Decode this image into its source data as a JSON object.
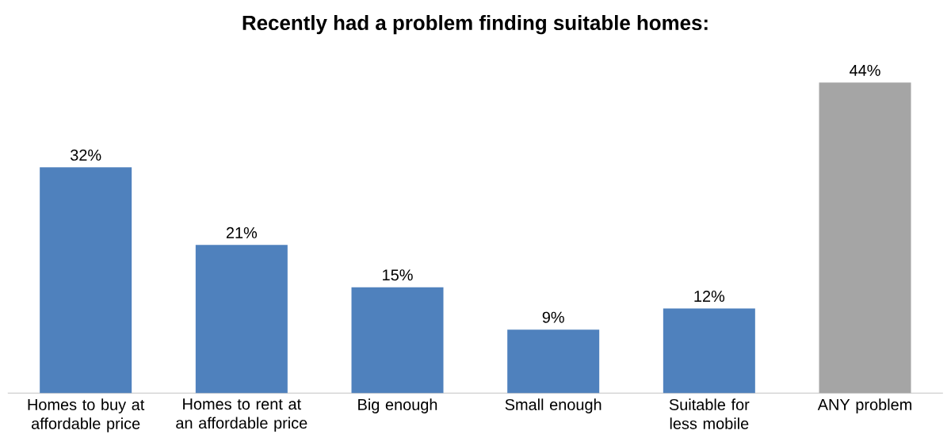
{
  "chart_data": {
    "type": "bar",
    "title": "Recently had a problem finding suitable homes:",
    "categories": [
      "Homes to buy at affordable price",
      "Homes to rent at an affordable price",
      "Big enough",
      "Small enough",
      "Suitable for less mobile",
      "ANY problem"
    ],
    "values": [
      32,
      21,
      15,
      9,
      12,
      44
    ],
    "value_labels": [
      "32%",
      "21%",
      "15%",
      "9%",
      "12%",
      "44%"
    ],
    "colors": [
      "#4f81bd",
      "#4f81bd",
      "#4f81bd",
      "#4f81bd",
      "#4f81bd",
      "#a5a5a5"
    ]
  }
}
